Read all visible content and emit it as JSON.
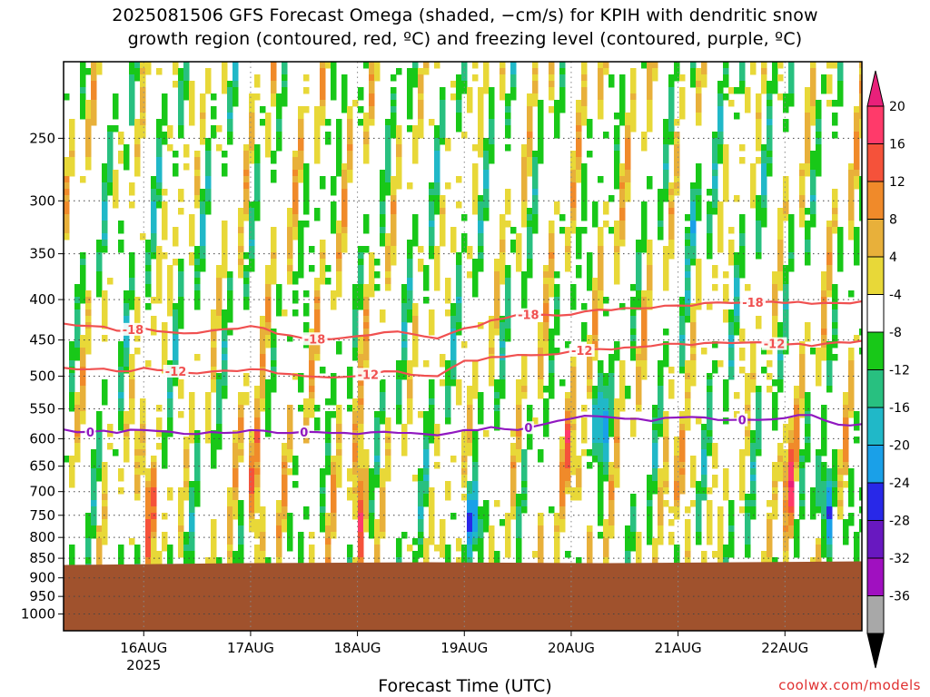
{
  "title_line1": "2025081506 GFS Forecast Omega (shaded, −cm/s) for KPIH with dendritic snow",
  "title_line2": "growth region (contoured, red, ºC) and freezing level (contoured, purple, ºC)",
  "x_axis_title": "Forecast Time (UTC)",
  "credit": "coolwx.com/models",
  "chart_data": {
    "type": "heatmap",
    "x_tick_labels": [
      "16AUG",
      "17AUG",
      "18AUG",
      "19AUG",
      "20AUG",
      "21AUG",
      "22AUG"
    ],
    "x_year_label": "2025",
    "y_tick_labels": [
      250,
      300,
      350,
      400,
      450,
      500,
      550,
      600,
      650,
      700,
      750,
      800,
      850,
      900,
      950,
      1000
    ],
    "y_range": [
      200,
      1050
    ],
    "y_log_pressure": true,
    "x_range_days": [
      15.25,
      22.72
    ],
    "grid": true,
    "ground_pressure": 860,
    "colorbar": {
      "labels": [
        20,
        16,
        12,
        8,
        4,
        -4,
        -8,
        -12,
        -16,
        -20,
        -24,
        -28,
        -32,
        -36
      ],
      "colors": [
        "#ff3a6a",
        "#f5523a",
        "#f08a2a",
        "#e8b03a",
        "#e8d838",
        "#ffffff",
        "#18c818",
        "#28c080",
        "#20b8c8",
        "#1aa0e8",
        "#2828e8",
        "#6818c0",
        "#a010c0",
        "#a8a8a8"
      ],
      "top_arrow_color": "#e8207a",
      "bottom_arrow_color": "#000000",
      "ground_color": "#a0522d"
    },
    "contours": [
      {
        "label": "-18",
        "color": "#f05050",
        "points": [
          [
            15.25,
            429
          ],
          [
            15.5,
            432
          ],
          [
            15.75,
            438
          ],
          [
            16.0,
            435
          ],
          [
            16.25,
            440
          ],
          [
            16.5,
            441
          ],
          [
            16.75,
            436
          ],
          [
            17.0,
            432
          ],
          [
            17.25,
            442
          ],
          [
            17.5,
            448
          ],
          [
            17.75,
            449
          ],
          [
            18.0,
            445
          ],
          [
            18.25,
            440
          ],
          [
            18.5,
            442
          ],
          [
            18.75,
            448
          ],
          [
            19.0,
            435
          ],
          [
            19.25,
            425
          ],
          [
            19.5,
            418
          ],
          [
            19.75,
            418
          ],
          [
            20.0,
            418
          ],
          [
            20.25,
            412
          ],
          [
            20.5,
            410
          ],
          [
            20.75,
            410
          ],
          [
            21.0,
            407
          ],
          [
            21.25,
            404
          ],
          [
            21.5,
            404
          ],
          [
            21.75,
            403
          ],
          [
            22.0,
            404
          ],
          [
            22.25,
            405
          ],
          [
            22.5,
            404
          ],
          [
            22.72,
            402
          ]
        ],
        "label_x": [
          15.9,
          17.6,
          19.6,
          21.7
        ]
      },
      {
        "label": "-12",
        "color": "#f05050",
        "points": [
          [
            15.25,
            488
          ],
          [
            15.5,
            490
          ],
          [
            15.75,
            493
          ],
          [
            16.0,
            488
          ],
          [
            16.25,
            492
          ],
          [
            16.5,
            496
          ],
          [
            16.75,
            492
          ],
          [
            17.0,
            490
          ],
          [
            17.25,
            496
          ],
          [
            17.5,
            500
          ],
          [
            17.75,
            502
          ],
          [
            18.0,
            500
          ],
          [
            18.25,
            493
          ],
          [
            18.5,
            498
          ],
          [
            18.75,
            500
          ],
          [
            19.0,
            478
          ],
          [
            19.25,
            473
          ],
          [
            19.5,
            470
          ],
          [
            19.75,
            470
          ],
          [
            20.0,
            465
          ],
          [
            20.25,
            462
          ],
          [
            20.5,
            460
          ],
          [
            20.75,
            458
          ],
          [
            21.0,
            455
          ],
          [
            21.25,
            454
          ],
          [
            21.5,
            454
          ],
          [
            21.75,
            453
          ],
          [
            22.0,
            456
          ],
          [
            22.25,
            458
          ],
          [
            22.5,
            453
          ],
          [
            22.72,
            451
          ]
        ],
        "label_x": [
          16.3,
          18.1,
          20.1,
          21.9
        ]
      },
      {
        "label": "0",
        "color": "#9018c0",
        "points": [
          [
            15.25,
            584
          ],
          [
            15.5,
            588
          ],
          [
            15.75,
            590
          ],
          [
            16.0,
            585
          ],
          [
            16.25,
            588
          ],
          [
            16.5,
            592
          ],
          [
            16.75,
            590
          ],
          [
            17.0,
            585
          ],
          [
            17.25,
            590
          ],
          [
            17.5,
            588
          ],
          [
            17.75,
            590
          ],
          [
            18.0,
            592
          ],
          [
            18.25,
            588
          ],
          [
            18.5,
            590
          ],
          [
            18.75,
            594
          ],
          [
            19.0,
            585
          ],
          [
            19.25,
            580
          ],
          [
            19.5,
            585
          ],
          [
            19.75,
            575
          ],
          [
            20.0,
            566
          ],
          [
            20.25,
            562
          ],
          [
            20.5,
            566
          ],
          [
            20.75,
            570
          ],
          [
            21.0,
            564
          ],
          [
            21.25,
            564
          ],
          [
            21.5,
            568
          ],
          [
            21.75,
            568
          ],
          [
            22.0,
            565
          ],
          [
            22.25,
            560
          ],
          [
            22.5,
            576
          ],
          [
            22.72,
            575
          ]
        ],
        "label_x": [
          15.5,
          17.5,
          19.6,
          21.6
        ]
      }
    ]
  }
}
